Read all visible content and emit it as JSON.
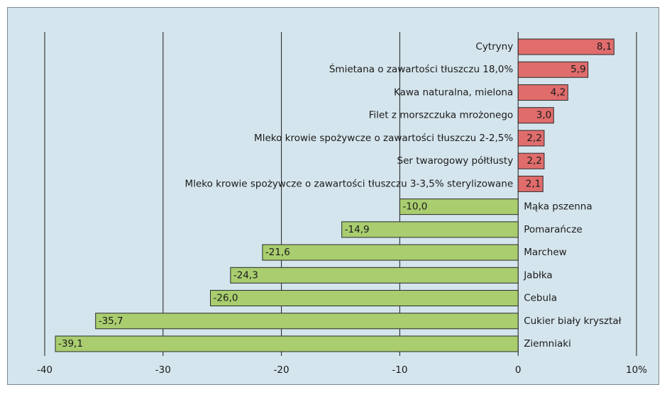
{
  "chart_data": {
    "type": "barh",
    "categories": [
      "Cytryny",
      "Śmietana o zawartości tłuszczu 18,0%",
      "Kawa naturalna, mielona",
      "Filet z morszczuka mrożonego",
      "Mleko krowie spożywcze o zawartości tłuszczu 2-2,5%",
      "Ser twarogowy półtłusty",
      "Mleko krowie spożywcze o zawartości tłuszczu 3-3,5% sterylizowane",
      "Mąka pszenna",
      "Pomarańcze",
      "Marchew",
      "Jabłka",
      "Cebula",
      "Cukier biały kryształ",
      "Ziemniaki"
    ],
    "values": [
      8.1,
      5.9,
      4.2,
      3.0,
      2.2,
      2.2,
      2.1,
      -10.0,
      -14.9,
      -21.6,
      -24.3,
      -26.0,
      -35.7,
      -39.1
    ],
    "value_labels": [
      "8,1",
      "5,9",
      "4,2",
      "3,0",
      "2,2",
      "2,2",
      "2,1",
      "-10,0",
      "-14,9",
      "-21,6",
      "-24,3",
      "-26,0",
      "-35,7",
      "-39,1"
    ],
    "colors": [
      "#e06c6c",
      "#e06c6c",
      "#e06c6c",
      "#e06c6c",
      "#e06c6c",
      "#e06c6c",
      "#e06c6c",
      "#a9cd6f",
      "#a9cd6f",
      "#a9cd6f",
      "#a9cd6f",
      "#a9cd6f",
      "#a9cd6f",
      "#a9cd6f"
    ],
    "xlim": [
      -40,
      10
    ],
    "xticks": [
      -40,
      -30,
      -20,
      -10,
      0,
      {
        "value": 10,
        "label": "10%"
      }
    ],
    "grid": true
  }
}
